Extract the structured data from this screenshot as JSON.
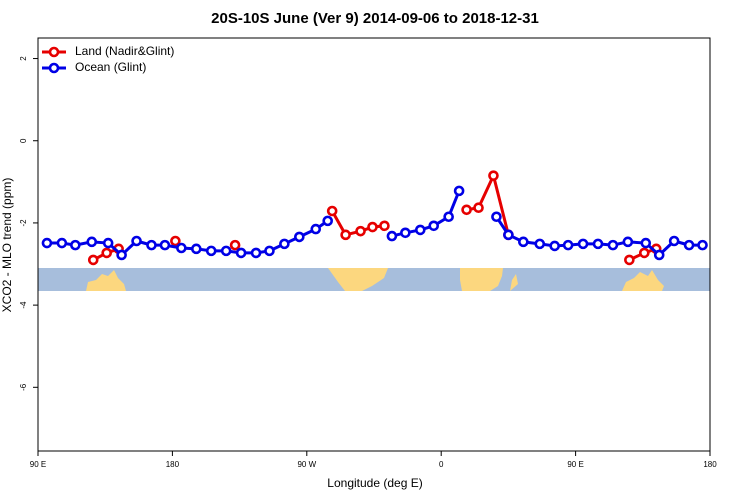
{
  "chart_data": {
    "type": "line",
    "title": "20S-10S June (Ver 9)   2014-09-06 to 2018-12-31",
    "x_label": "Longitude (deg E)",
    "y_label": "XCO2 - MLO trend (ppm)",
    "xlim": [
      90,
      540
    ],
    "xticks": [
      {
        "value": 90,
        "label": "90 E"
      },
      180,
      {
        "value": 270,
        "label": "90 W"
      },
      {
        "value": 360,
        "label": "0"
      },
      {
        "value": 450,
        "label": "90 E"
      },
      {
        "value": 540,
        "label": "180"
      }
    ],
    "ylim": [
      -7.55,
      2.5
    ],
    "yticks": [
      -6,
      -4,
      -2,
      0,
      2
    ],
    "legend": "top-left",
    "series": [
      {
        "name": "Land (Nadir&Glint)",
        "color": "#e60000",
        "x": [
          127,
          136,
          144,
          null,
          182,
          null,
          222,
          null,
          287,
          296,
          306,
          314,
          322,
          null,
          377,
          385,
          395,
          405,
          null,
          486,
          496,
          504
        ],
        "values": [
          -2.9,
          -2.73,
          -2.63,
          null,
          -2.44,
          null,
          -2.54,
          null,
          -1.71,
          -2.29,
          -2.2,
          -2.1,
          -2.07,
          null,
          -1.68,
          -1.63,
          -0.85,
          -2.29,
          null,
          -2.9,
          -2.73,
          -2.63
        ]
      },
      {
        "name": "Ocean (Glint)",
        "color": "#0000e6",
        "x": [
          96,
          106,
          115,
          126,
          137,
          146,
          156,
          166,
          175,
          186,
          196,
          206,
          216,
          226,
          236,
          245,
          255,
          265,
          276,
          284,
          null,
          327,
          336,
          346,
          355,
          365,
          372,
          null,
          397,
          405,
          415,
          426,
          436,
          445,
          455,
          465,
          475,
          485,
          497,
          506,
          516,
          526,
          535
        ],
        "values": [
          -2.49,
          -2.49,
          -2.54,
          -2.46,
          -2.49,
          -2.78,
          -2.44,
          -2.54,
          -2.54,
          -2.61,
          -2.63,
          -2.68,
          -2.68,
          -2.73,
          -2.73,
          -2.68,
          -2.51,
          -2.34,
          -2.15,
          -1.95,
          null,
          -2.32,
          -2.24,
          -2.17,
          -2.07,
          -1.85,
          -1.22,
          null,
          -1.85,
          -2.29,
          -2.46,
          -2.51,
          -2.56,
          -2.54,
          -2.51,
          -2.51,
          -2.54,
          -2.46,
          -2.49,
          -2.78,
          -2.44,
          -2.54,
          -2.54
        ]
      }
    ]
  }
}
